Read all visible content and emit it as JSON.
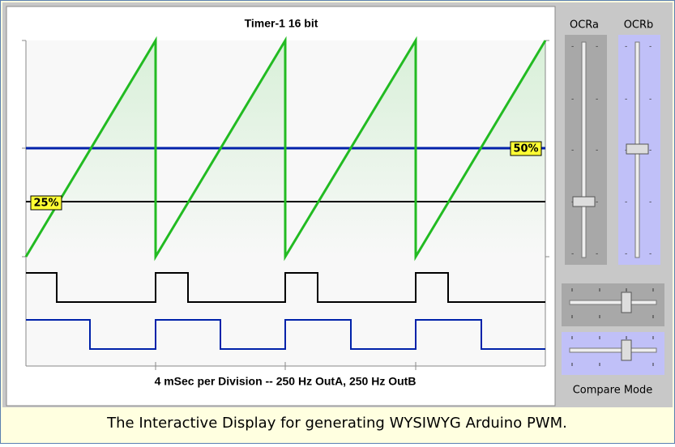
{
  "plot": {
    "title": "Timer-1 16 bit",
    "caption": "4 mSec per Division -- 250 Hz OutA,  250 Hz OutB",
    "marker_a": "25%",
    "marker_b": "50%"
  },
  "controls": {
    "slider_a": "OCRa",
    "slider_b": "OCRb",
    "mode_label": "Compare Mode"
  },
  "footer": "The Interactive Display for generating WYSIWYG Arduino PWM."
}
